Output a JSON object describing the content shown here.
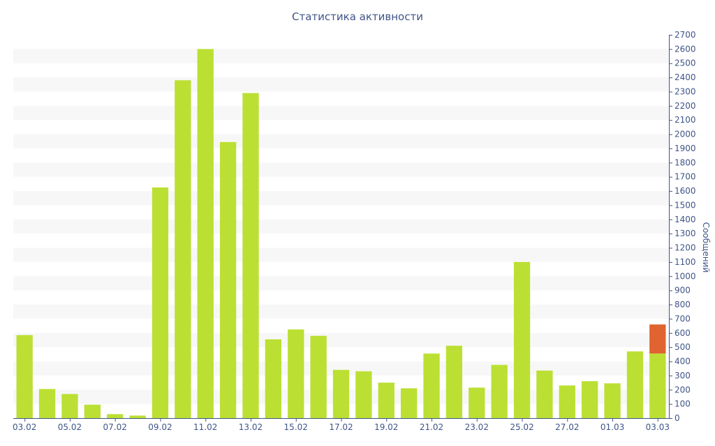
{
  "chart_data": {
    "type": "bar",
    "title": "Статистика активности",
    "ylabel": "Сообщений",
    "xlabel": "",
    "ylim": [
      0,
      2700
    ],
    "ytick_step": 100,
    "y_axis_side": "right",
    "grid": "alternating horizontal bands",
    "categories": [
      "03.02",
      "04.02",
      "05.02",
      "06.02",
      "07.02",
      "08.02",
      "09.02",
      "10.02",
      "11.02",
      "12.02",
      "13.02",
      "14.02",
      "15.02",
      "16.02",
      "17.02",
      "18.02",
      "19.02",
      "20.02",
      "21.02",
      "22.02",
      "23.02",
      "24.02",
      "25.02",
      "26.02",
      "27.02",
      "28.02",
      "01.03",
      "02.03",
      "03.03"
    ],
    "x_tick_labels": [
      "03.02",
      "05.02",
      "07.02",
      "09.02",
      "11.02",
      "13.02",
      "15.02",
      "17.02",
      "19.02",
      "21.02",
      "23.02",
      "25.02",
      "27.02",
      "01.03",
      "03.03"
    ],
    "series": [
      {
        "color": "#bbe033",
        "values": [
          585,
          205,
          170,
          95,
          28,
          18,
          1625,
          2380,
          2600,
          1945,
          2290,
          555,
          625,
          580,
          340,
          330,
          250,
          210,
          455,
          510,
          215,
          375,
          1100,
          335,
          230,
          260,
          245,
          470,
          455
        ]
      },
      {
        "color": "#e06330",
        "values": [
          0,
          0,
          0,
          0,
          0,
          0,
          0,
          0,
          0,
          0,
          0,
          0,
          0,
          0,
          0,
          0,
          0,
          0,
          0,
          0,
          0,
          0,
          0,
          0,
          0,
          0,
          0,
          0,
          205
        ]
      }
    ],
    "axis_color": "#3f5487",
    "band_color": "#f7f7f7"
  }
}
